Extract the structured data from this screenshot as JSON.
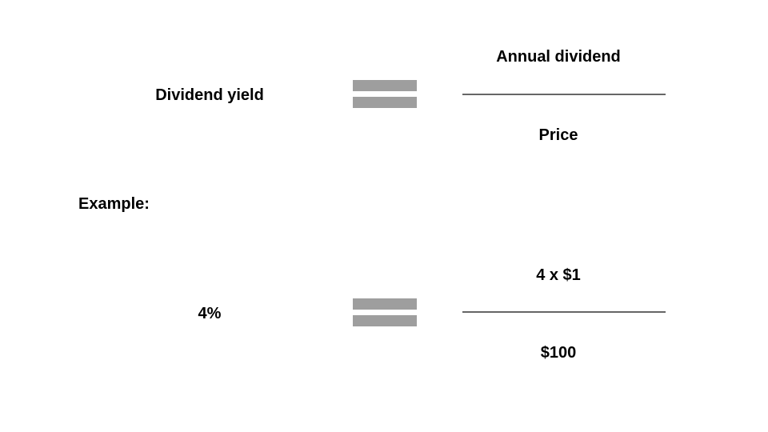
{
  "formula": {
    "left_label": "Dividend yield",
    "numerator": "Annual dividend",
    "denominator": "Price"
  },
  "example": {
    "heading": "Example:",
    "left_value": "4%",
    "numerator": "4 x $1",
    "denominator": "$100"
  },
  "colors": {
    "equals_sign": "#9e9e9e",
    "fraction_bar": "#666666",
    "text": "#000000",
    "background": "#ffffff"
  }
}
